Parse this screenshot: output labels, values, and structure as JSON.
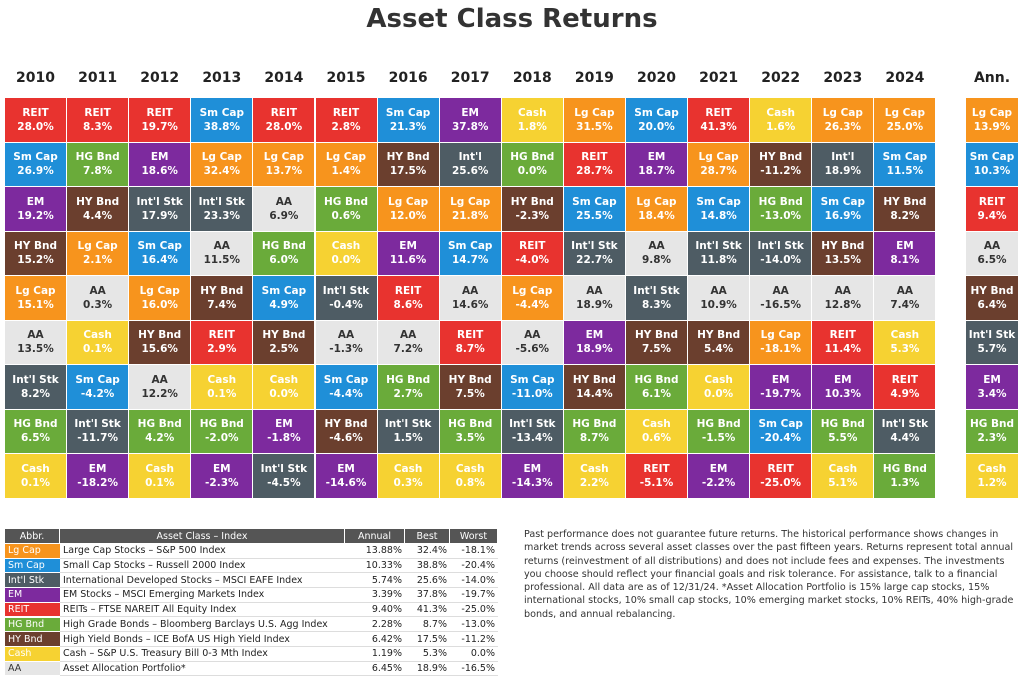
{
  "title": "Asset Class Returns",
  "grid": {
    "columns": [
      {
        "header": "2010",
        "cells": [
          {
            "label": "REIT",
            "value": "28.0%"
          },
          {
            "label": "Sm Cap",
            "value": "26.9%"
          },
          {
            "label": "EM",
            "value": "19.2%"
          },
          {
            "label": "HY Bnd",
            "value": "15.2%"
          },
          {
            "label": "Lg Cap",
            "value": "15.1%"
          },
          {
            "label": "AA",
            "value": "13.5%"
          },
          {
            "label": "Int'l Stk",
            "value": "8.2%"
          },
          {
            "label": "HG Bnd",
            "value": "6.5%"
          },
          {
            "label": "Cash",
            "value": "0.1%"
          }
        ]
      },
      {
        "header": "2011",
        "cells": [
          {
            "label": "REIT",
            "value": "8.3%"
          },
          {
            "label": "HG Bnd",
            "value": "7.8%"
          },
          {
            "label": "HY Bnd",
            "value": "4.4%"
          },
          {
            "label": "Lg Cap",
            "value": "2.1%"
          },
          {
            "label": "AA",
            "value": "0.3%"
          },
          {
            "label": "Cash",
            "value": "0.1%"
          },
          {
            "label": "Sm Cap",
            "value": "-4.2%"
          },
          {
            "label": "Int'l Stk",
            "value": "-11.7%"
          },
          {
            "label": "EM",
            "value": "-18.2%"
          }
        ]
      },
      {
        "header": "2012",
        "cells": [
          {
            "label": "REIT",
            "value": "19.7%"
          },
          {
            "label": "EM",
            "value": "18.6%"
          },
          {
            "label": "Int'l Stk",
            "value": "17.9%"
          },
          {
            "label": "Sm Cap",
            "value": "16.4%"
          },
          {
            "label": "Lg Cap",
            "value": "16.0%"
          },
          {
            "label": "HY Bnd",
            "value": "15.6%"
          },
          {
            "label": "AA",
            "value": "12.2%"
          },
          {
            "label": "HG Bnd",
            "value": "4.2%"
          },
          {
            "label": "Cash",
            "value": "0.1%"
          }
        ]
      },
      {
        "header": "2013",
        "cells": [
          {
            "label": "Sm Cap",
            "value": "38.8%"
          },
          {
            "label": "Lg Cap",
            "value": "32.4%"
          },
          {
            "label": "Int'l Stk",
            "value": "23.3%"
          },
          {
            "label": "AA",
            "value": "11.5%"
          },
          {
            "label": "HY Bnd",
            "value": "7.4%"
          },
          {
            "label": "REIT",
            "value": "2.9%"
          },
          {
            "label": "Cash",
            "value": "0.1%"
          },
          {
            "label": "HG Bnd",
            "value": "-2.0%"
          },
          {
            "label": "EM",
            "value": "-2.3%"
          }
        ]
      },
      {
        "header": "2014",
        "cells": [
          {
            "label": "REIT",
            "value": "28.0%"
          },
          {
            "label": "Lg Cap",
            "value": "13.7%"
          },
          {
            "label": "AA",
            "value": "6.9%"
          },
          {
            "label": "HG Bnd",
            "value": "6.0%"
          },
          {
            "label": "Sm Cap",
            "value": "4.9%"
          },
          {
            "label": "HY Bnd",
            "value": "2.5%"
          },
          {
            "label": "Cash",
            "value": "0.0%"
          },
          {
            "label": "EM",
            "value": "-1.8%"
          },
          {
            "label": "Int'l Stk",
            "value": "-4.5%"
          }
        ]
      },
      {
        "header": "2015",
        "cells": [
          {
            "label": "REIT",
            "value": "2.8%"
          },
          {
            "label": "Lg Cap",
            "value": "1.4%"
          },
          {
            "label": "HG Bnd",
            "value": "0.6%"
          },
          {
            "label": "Cash",
            "value": "0.0%"
          },
          {
            "label": "Int'l Stk",
            "value": "-0.4%"
          },
          {
            "label": "AA",
            "value": "-1.3%"
          },
          {
            "label": "Sm Cap",
            "value": "-4.4%"
          },
          {
            "label": "HY Bnd",
            "value": "-4.6%"
          },
          {
            "label": "EM",
            "value": "-14.6%"
          }
        ]
      },
      {
        "header": "2016",
        "cells": [
          {
            "label": "Sm Cap",
            "value": "21.3%"
          },
          {
            "label": "HY Bnd",
            "value": "17.5%"
          },
          {
            "label": "Lg Cap",
            "value": "12.0%"
          },
          {
            "label": "EM",
            "value": "11.6%"
          },
          {
            "label": "REIT",
            "value": "8.6%"
          },
          {
            "label": "AA",
            "value": "7.2%"
          },
          {
            "label": "HG Bnd",
            "value": "2.7%"
          },
          {
            "label": "Int'l Stk",
            "value": "1.5%"
          },
          {
            "label": "Cash",
            "value": "0.3%"
          }
        ]
      },
      {
        "header": "2017",
        "cells": [
          {
            "label": "EM",
            "value": "37.8%"
          },
          {
            "label": "Int'l",
            "value": "25.6%"
          },
          {
            "label": "Lg Cap",
            "value": "21.8%"
          },
          {
            "label": "Sm Cap",
            "value": "14.7%"
          },
          {
            "label": "AA",
            "value": "14.6%"
          },
          {
            "label": "REIT",
            "value": "8.7%"
          },
          {
            "label": "HY Bnd",
            "value": "7.5%"
          },
          {
            "label": "HG Bnd",
            "value": "3.5%"
          },
          {
            "label": "Cash",
            "value": "0.8%"
          }
        ]
      },
      {
        "header": "2018",
        "cells": [
          {
            "label": "Cash",
            "value": "1.8%"
          },
          {
            "label": "HG Bnd",
            "value": "0.0%"
          },
          {
            "label": "HY Bnd",
            "value": "-2.3%"
          },
          {
            "label": "REIT",
            "value": "-4.0%"
          },
          {
            "label": "Lg Cap",
            "value": "-4.4%"
          },
          {
            "label": "AA",
            "value": "-5.6%"
          },
          {
            "label": "Sm Cap",
            "value": "-11.0%"
          },
          {
            "label": "Int'l Stk",
            "value": "-13.4%"
          },
          {
            "label": "EM",
            "value": "-14.3%"
          }
        ]
      },
      {
        "header": "2019",
        "cells": [
          {
            "label": "Lg Cap",
            "value": "31.5%"
          },
          {
            "label": "REIT",
            "value": "28.7%"
          },
          {
            "label": "Sm Cap",
            "value": "25.5%"
          },
          {
            "label": "Int'l Stk",
            "value": "22.7%"
          },
          {
            "label": "AA",
            "value": "18.9%"
          },
          {
            "label": "EM",
            "value": "18.9%"
          },
          {
            "label": "HY Bnd",
            "value": "14.4%"
          },
          {
            "label": "HG Bnd",
            "value": "8.7%"
          },
          {
            "label": "Cash",
            "value": "2.2%"
          }
        ]
      },
      {
        "header": "2020",
        "cells": [
          {
            "label": "Sm Cap",
            "value": "20.0%"
          },
          {
            "label": "EM",
            "value": "18.7%"
          },
          {
            "label": "Lg Cap",
            "value": "18.4%"
          },
          {
            "label": "AA",
            "value": "9.8%"
          },
          {
            "label": "Int'l Stk",
            "value": "8.3%"
          },
          {
            "label": "HY Bnd",
            "value": "7.5%"
          },
          {
            "label": "HG Bnd",
            "value": "6.1%"
          },
          {
            "label": "Cash",
            "value": "0.6%"
          },
          {
            "label": "REIT",
            "value": "-5.1%"
          }
        ]
      },
      {
        "header": "2021",
        "cells": [
          {
            "label": "REIT",
            "value": "41.3%"
          },
          {
            "label": "Lg Cap",
            "value": "28.7%"
          },
          {
            "label": "Sm Cap",
            "value": "14.8%"
          },
          {
            "label": "Int'l Stk",
            "value": "11.8%"
          },
          {
            "label": "AA",
            "value": "10.9%"
          },
          {
            "label": "HY Bnd",
            "value": "5.4%"
          },
          {
            "label": "Cash",
            "value": "0.0%"
          },
          {
            "label": "HG Bnd",
            "value": "-1.5%"
          },
          {
            "label": "EM",
            "value": "-2.2%"
          }
        ]
      },
      {
        "header": "2022",
        "cells": [
          {
            "label": "Cash",
            "value": "1.6%"
          },
          {
            "label": "HY Bnd",
            "value": "-11.2%"
          },
          {
            "label": "HG Bnd",
            "value": "-13.0%"
          },
          {
            "label": "Int'l Stk",
            "value": "-14.0%"
          },
          {
            "label": "AA",
            "value": "-16.5%"
          },
          {
            "label": "Lg Cap",
            "value": "-18.1%"
          },
          {
            "label": "EM",
            "value": "-19.7%"
          },
          {
            "label": "Sm Cap",
            "value": "-20.4%"
          },
          {
            "label": "REIT",
            "value": "-25.0%"
          }
        ]
      },
      {
        "header": "2023",
        "cells": [
          {
            "label": "Lg Cap",
            "value": "26.3%"
          },
          {
            "label": "Int'l",
            "value": "18.9%"
          },
          {
            "label": "Sm Cap",
            "value": "16.9%"
          },
          {
            "label": "HY Bnd",
            "value": "13.5%"
          },
          {
            "label": "AA",
            "value": "12.8%"
          },
          {
            "label": "REIT",
            "value": "11.4%"
          },
          {
            "label": "EM",
            "value": "10.3%"
          },
          {
            "label": "HG Bnd",
            "value": "5.5%"
          },
          {
            "label": "Cash",
            "value": "5.1%"
          }
        ]
      },
      {
        "header": "2024",
        "cells": [
          {
            "label": "Lg Cap",
            "value": "25.0%"
          },
          {
            "label": "Sm Cap",
            "value": "11.5%"
          },
          {
            "label": "HY Bnd",
            "value": "8.2%"
          },
          {
            "label": "EM",
            "value": "8.1%"
          },
          {
            "label": "AA",
            "value": "7.4%"
          },
          {
            "label": "Cash",
            "value": "5.3%"
          },
          {
            "label": "REIT",
            "value": "4.9%"
          },
          {
            "label": "Int'l Stk",
            "value": "4.4%"
          },
          {
            "label": "HG Bnd",
            "value": "1.3%"
          }
        ]
      },
      {
        "header": "Ann.",
        "cells": [
          {
            "label": "Lg Cap",
            "value": "13.9%"
          },
          {
            "label": "Sm Cap",
            "value": "10.3%"
          },
          {
            "label": "REIT",
            "value": "9.4%"
          },
          {
            "label": "AA",
            "value": "6.5%"
          },
          {
            "label": "HY Bnd",
            "value": "6.4%"
          },
          {
            "label": "Int'l Stk",
            "value": "5.7%"
          },
          {
            "label": "EM",
            "value": "3.4%"
          },
          {
            "label": "HG Bnd",
            "value": "2.3%"
          },
          {
            "label": "Cash",
            "value": "1.2%"
          }
        ]
      }
    ]
  },
  "legend": {
    "headers": [
      "Abbr.",
      "Asset Class – Index",
      "Annual",
      "Best",
      "Worst"
    ],
    "rows": [
      {
        "abbr": "Lg Cap",
        "index": "Large Cap Stocks – S&P 500 Index",
        "annual": "13.88%",
        "best": "32.4%",
        "worst": "-18.1%",
        "color": "#f7941d",
        "text_color": "#ffffff"
      },
      {
        "abbr": "Sm Cap",
        "index": "Small Cap Stocks – Russell 2000 Index",
        "annual": "10.33%",
        "best": "38.8%",
        "worst": "-20.4%",
        "color": "#1f8fd8",
        "text_color": "#ffffff"
      },
      {
        "abbr": "Int'l Stk",
        "index": "International Developed Stocks – MSCI EAFE Index",
        "annual": "5.74%",
        "best": "25.6%",
        "worst": "-14.0%",
        "color": "#4e5c64",
        "text_color": "#ffffff"
      },
      {
        "abbr": "EM",
        "index": "EM Stocks – MSCI Emerging Markets Index",
        "annual": "3.39%",
        "best": "37.8%",
        "worst": "-19.7%",
        "color": "#7d2a9e",
        "text_color": "#ffffff"
      },
      {
        "abbr": "REIT",
        "index": "REITs – FTSE NAREIT All Equity Index",
        "annual": "9.40%",
        "best": "41.3%",
        "worst": "-25.0%",
        "color": "#e8332f",
        "text_color": "#ffffff"
      },
      {
        "abbr": "HG Bnd",
        "index": "High Grade Bonds – Bloomberg Barclays U.S. Agg Index",
        "annual": "2.28%",
        "best": "8.7%",
        "worst": "-13.0%",
        "color": "#6aab3a",
        "text_color": "#ffffff"
      },
      {
        "abbr": "HY Bnd",
        "index": "High Yield Bonds – ICE BofA US High Yield Index",
        "annual": "6.42%",
        "best": "17.5%",
        "worst": "-11.2%",
        "color": "#6b3f2e",
        "text_color": "#ffffff"
      },
      {
        "abbr": "Cash",
        "index": "Cash – S&P U.S. Treasury Bill 0-3 Mth Index",
        "annual": "1.19%",
        "best": "5.3%",
        "worst": "0.0%",
        "color": "#f6d232",
        "text_color": "#ffffff"
      },
      {
        "abbr": "AA",
        "index": "Asset Allocation Portfolio*",
        "annual": "6.45%",
        "best": "18.9%",
        "worst": "-16.5%",
        "color": "#e6e6e6",
        "text_color": "#333333"
      }
    ]
  },
  "note": "Past performance does not guarantee future returns. The historical performance shows changes in market trends across several asset classes over the past fifteen years. Returns represent total annual returns (reinvestment of all distributions) and does not include fees and expenses. The investments you choose should reflect your financial goals and risk tolerance. For assistance, talk to a financial professional. All data are as of 12/31/24. *Asset Allocation Portfolio is 15% large cap stocks, 15% international stocks, 10% small cap stocks, 10% emerging market stocks, 10% REITs, 40% high-grade bonds, and annual rebalancing."
}
